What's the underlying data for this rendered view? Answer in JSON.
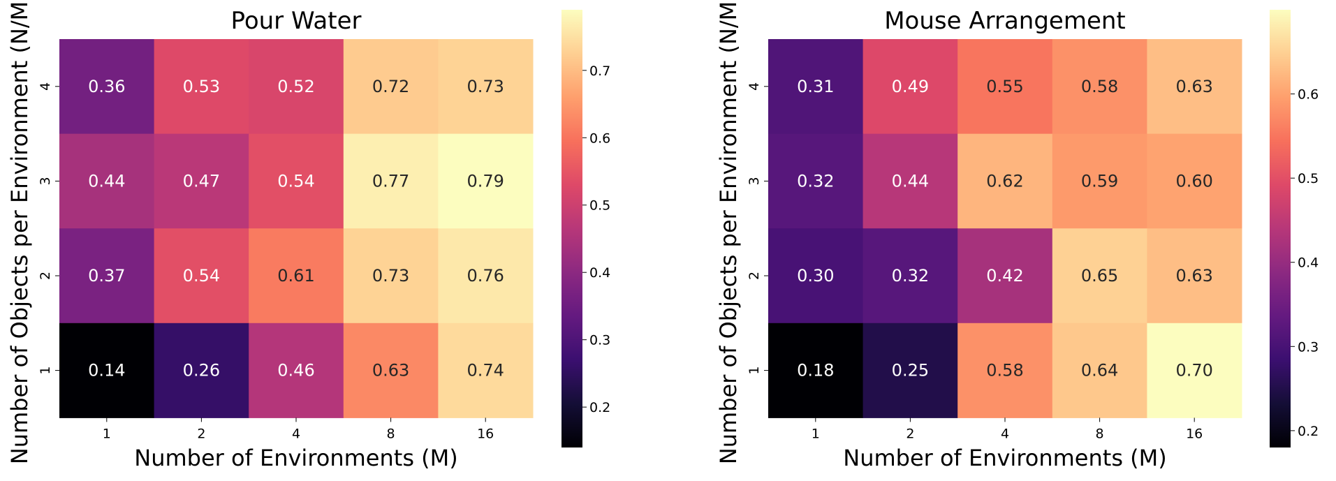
{
  "chart_data": [
    {
      "type": "heatmap",
      "title": "Pour Water",
      "xlabel": "Number of Environments (M)",
      "ylabel": "Number of Objects per Environment (N/M)",
      "x_categories": [
        "1",
        "2",
        "4",
        "8",
        "16"
      ],
      "y_categories": [
        "4",
        "3",
        "2",
        "1"
      ],
      "values": [
        [
          0.36,
          0.53,
          0.52,
          0.72,
          0.73
        ],
        [
          0.44,
          0.47,
          0.54,
          0.77,
          0.79
        ],
        [
          0.37,
          0.54,
          0.61,
          0.73,
          0.76
        ],
        [
          0.14,
          0.26,
          0.46,
          0.63,
          0.74
        ]
      ],
      "colormap": "magma",
      "colorbar": {
        "vmin": 0.14,
        "vmax": 0.79,
        "ticks": [
          "0.2",
          "0.3",
          "0.4",
          "0.5",
          "0.6",
          "0.7"
        ]
      }
    },
    {
      "type": "heatmap",
      "title": "Mouse Arrangement",
      "xlabel": "Number of Environments (M)",
      "ylabel": "Number of Objects per Environment (N/M)",
      "x_categories": [
        "1",
        "2",
        "4",
        "8",
        "16"
      ],
      "y_categories": [
        "4",
        "3",
        "2",
        "1"
      ],
      "values": [
        [
          0.31,
          0.49,
          0.55,
          0.58,
          0.63
        ],
        [
          0.32,
          0.44,
          0.62,
          0.59,
          0.6
        ],
        [
          0.3,
          0.32,
          0.42,
          0.65,
          0.63
        ],
        [
          0.18,
          0.25,
          0.58,
          0.64,
          0.7
        ]
      ],
      "colormap": "magma",
      "colorbar": {
        "vmin": 0.18,
        "vmax": 0.7,
        "ticks": [
          "0.2",
          "0.3",
          "0.4",
          "0.5",
          "0.6"
        ]
      }
    }
  ]
}
